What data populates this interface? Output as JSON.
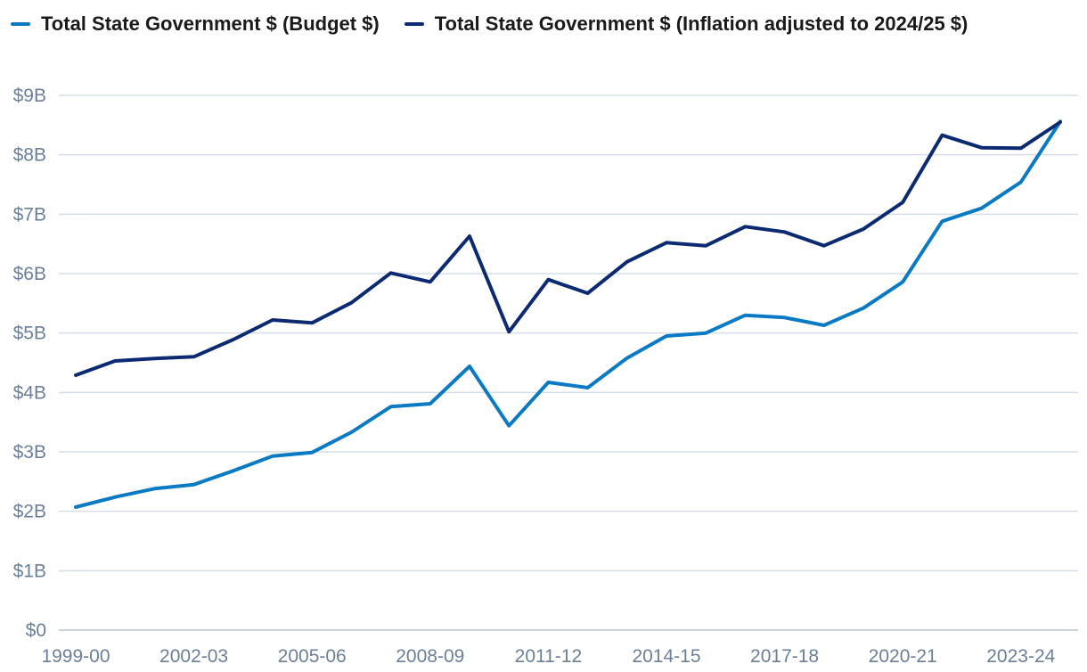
{
  "chart_data": {
    "type": "line",
    "title": "",
    "xlabel": "",
    "ylabel": "",
    "ylim": [
      0,
      9
    ],
    "y_ticks": [
      {
        "value": 0,
        "label": "$0"
      },
      {
        "value": 1,
        "label": "$1B"
      },
      {
        "value": 2,
        "label": "$2B"
      },
      {
        "value": 3,
        "label": "$3B"
      },
      {
        "value": 4,
        "label": "$4B"
      },
      {
        "value": 5,
        "label": "$5B"
      },
      {
        "value": 6,
        "label": "$6B"
      },
      {
        "value": 7,
        "label": "$7B"
      },
      {
        "value": 8,
        "label": "$8B"
      },
      {
        "value": 9,
        "label": "$9B"
      }
    ],
    "categories": [
      "1999-00",
      "2000-01",
      "2001-02",
      "2002-03",
      "2003-04",
      "2004-05",
      "2005-06",
      "2006-07",
      "2007-08",
      "2008-09",
      "2009-10",
      "2010-11",
      "2011-12",
      "2012-13",
      "2013-14",
      "2014-15",
      "2015-16",
      "2016-17",
      "2017-18",
      "2018-19",
      "2019-20",
      "2020-21",
      "2021-22",
      "2022-23",
      "2023-24",
      "2024-25"
    ],
    "x_tick_labels": [
      {
        "index": 0,
        "label": "1999-00"
      },
      {
        "index": 3,
        "label": "2002-03"
      },
      {
        "index": 6,
        "label": "2005-06"
      },
      {
        "index": 9,
        "label": "2008-09"
      },
      {
        "index": 12,
        "label": "2011-12"
      },
      {
        "index": 15,
        "label": "2014-15"
      },
      {
        "index": 18,
        "label": "2017-18"
      },
      {
        "index": 21,
        "label": "2020-21"
      },
      {
        "index": 24,
        "label": "2023-24"
      }
    ],
    "series": [
      {
        "name": "Total State Government $ (Budget $)",
        "color": "#0b7ac4",
        "values": [
          2.07,
          2.24,
          2.38,
          2.45,
          2.68,
          2.93,
          2.99,
          3.33,
          3.76,
          3.81,
          4.44,
          3.44,
          4.17,
          4.08,
          4.58,
          4.95,
          5.0,
          5.3,
          5.26,
          5.13,
          5.42,
          5.86,
          6.88,
          7.1,
          7.54,
          8.56
        ]
      },
      {
        "name": "Total State Government $ (Inflation adjusted to 2024/25 $)",
        "color": "#0c2a72",
        "values": [
          4.29,
          4.53,
          4.57,
          4.6,
          4.89,
          5.22,
          5.17,
          5.51,
          6.01,
          5.86,
          6.63,
          5.02,
          5.9,
          5.67,
          6.2,
          6.52,
          6.47,
          6.79,
          6.7,
          6.47,
          6.75,
          7.2,
          8.33,
          8.12,
          8.11,
          8.55
        ]
      }
    ],
    "legend_position": "top-left",
    "grid": true
  }
}
